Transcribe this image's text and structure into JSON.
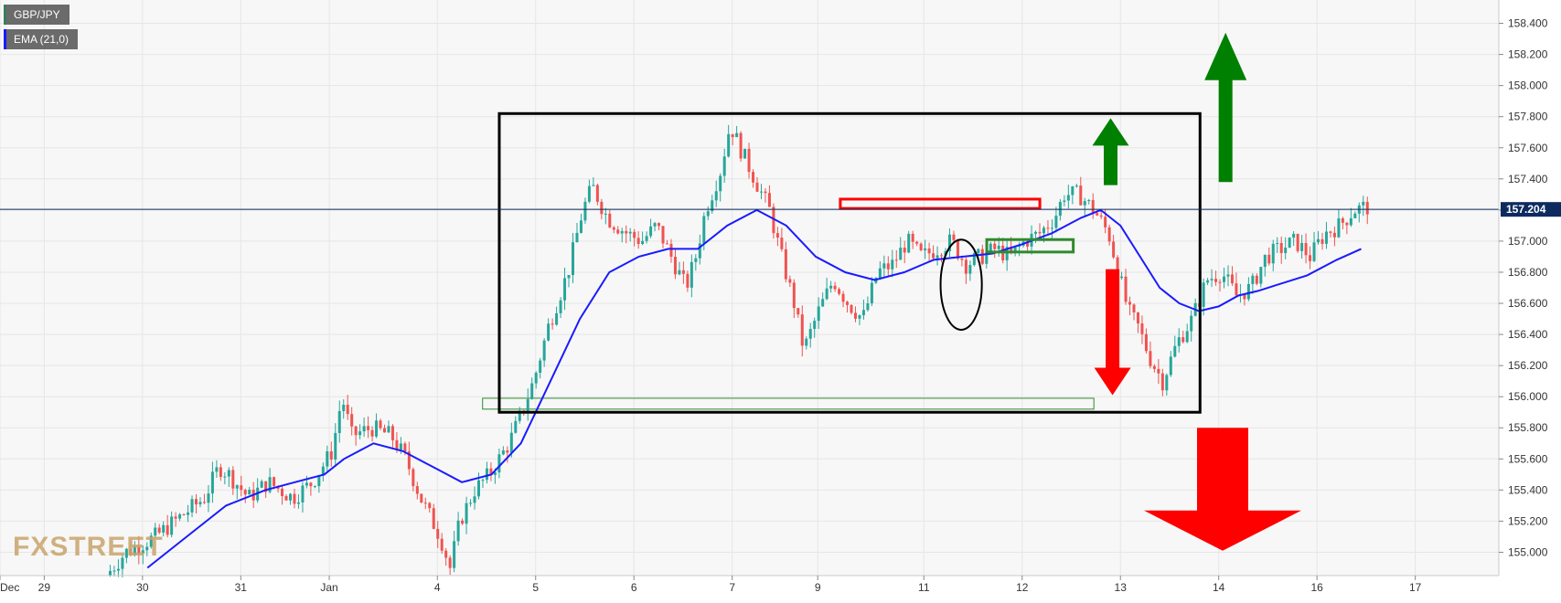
{
  "legend": [
    {
      "label": "GBP/JPY",
      "bg": "#6b6b6b",
      "accent": "#3a7d5a"
    },
    {
      "label": "EMA (21,0)",
      "bg": "#6b6b6b",
      "accent": "#1a1aff"
    }
  ],
  "watermark": "FXSTREET",
  "current_price_label": "157.204",
  "chart_data": {
    "type": "candlestick",
    "symbol": "GBP/JPY",
    "indicator": "EMA (21,0)",
    "y_ticks": [
      "158.400",
      "158.200",
      "158.000",
      "157.800",
      "157.600",
      "157.400",
      "157.200",
      "157.000",
      "156.800",
      "156.600",
      "156.400",
      "156.200",
      "156.000",
      "155.800",
      "155.600",
      "155.400",
      "155.200",
      "155.000"
    ],
    "ylim": [
      154.85,
      158.55
    ],
    "x_ticks": [
      {
        "label": "Dec",
        "day": 28.0
      },
      {
        "label": "29",
        "day": 28.45
      },
      {
        "label": "30",
        "day": 29.45
      },
      {
        "label": "31",
        "day": 30.45
      },
      {
        "label": "Jan",
        "day": 31.35
      },
      {
        "label": "4",
        "day": 32.45
      },
      {
        "label": "5",
        "day": 33.45
      },
      {
        "label": "6",
        "day": 34.45
      },
      {
        "label": "7",
        "day": 35.45
      },
      {
        "label": "9",
        "day": 36.32
      },
      {
        "label": "11",
        "day": 37.4
      },
      {
        "label": "12",
        "day": 38.4
      },
      {
        "label": "13",
        "day": 39.4
      },
      {
        "label": "14",
        "day": 40.4
      },
      {
        "label": "16",
        "day": 41.4
      },
      {
        "label": "17",
        "day": 42.4
      }
    ],
    "xlim": [
      28.0,
      43.25
    ],
    "current_price": 157.204,
    "price_path": [
      [
        29.1,
        154.85
      ],
      [
        29.3,
        155.0
      ],
      [
        29.6,
        155.1
      ],
      [
        29.9,
        155.25
      ],
      [
        30.1,
        155.35
      ],
      [
        30.25,
        155.55
      ],
      [
        30.35,
        155.5
      ],
      [
        30.55,
        155.35
      ],
      [
        30.75,
        155.45
      ],
      [
        31.0,
        155.35
      ],
      [
        31.2,
        155.45
      ],
      [
        31.4,
        155.65
      ],
      [
        31.5,
        156.0
      ],
      [
        31.6,
        155.75
      ],
      [
        31.8,
        155.8
      ],
      [
        32.0,
        155.75
      ],
      [
        32.15,
        155.6
      ],
      [
        32.3,
        155.35
      ],
      [
        32.5,
        155.1
      ],
      [
        32.6,
        154.9
      ],
      [
        32.7,
        155.2
      ],
      [
        32.85,
        155.4
      ],
      [
        33.0,
        155.5
      ],
      [
        33.1,
        155.6
      ],
      [
        33.2,
        155.7
      ],
      [
        33.3,
        155.85
      ],
      [
        33.45,
        156.1
      ],
      [
        33.6,
        156.45
      ],
      [
        33.8,
        156.8
      ],
      [
        33.95,
        157.2
      ],
      [
        34.05,
        157.35
      ],
      [
        34.2,
        157.15
      ],
      [
        34.4,
        157.05
      ],
      [
        34.55,
        157.0
      ],
      [
        34.7,
        157.1
      ],
      [
        34.85,
        156.9
      ],
      [
        35.0,
        156.7
      ],
      [
        35.1,
        156.9
      ],
      [
        35.2,
        157.2
      ],
      [
        35.35,
        157.45
      ],
      [
        35.45,
        157.75
      ],
      [
        35.55,
        157.6
      ],
      [
        35.7,
        157.4
      ],
      [
        35.85,
        157.2
      ],
      [
        35.95,
        156.95
      ],
      [
        36.1,
        156.6
      ],
      [
        36.2,
        156.3
      ],
      [
        36.35,
        156.55
      ],
      [
        36.5,
        156.75
      ],
      [
        36.65,
        156.6
      ],
      [
        36.8,
        156.5
      ],
      [
        36.95,
        156.8
      ],
      [
        37.1,
        156.85
      ],
      [
        37.25,
        157.0
      ],
      [
        37.4,
        156.9
      ],
      [
        37.55,
        156.95
      ],
      [
        37.7,
        157.0
      ],
      [
        37.85,
        156.85
      ],
      [
        38.0,
        156.9
      ],
      [
        38.15,
        156.95
      ],
      [
        38.3,
        156.9
      ],
      [
        38.45,
        157.0
      ],
      [
        38.6,
        157.05
      ],
      [
        38.75,
        157.15
      ],
      [
        38.85,
        157.3
      ],
      [
        39.0,
        157.3
      ],
      [
        39.15,
        157.2
      ],
      [
        39.3,
        157.05
      ],
      [
        39.42,
        156.75
      ],
      [
        39.5,
        156.55
      ],
      [
        39.6,
        156.45
      ],
      [
        39.72,
        156.25
      ],
      [
        39.85,
        156.1
      ],
      [
        40.0,
        156.35
      ],
      [
        40.15,
        156.5
      ],
      [
        40.3,
        156.75
      ],
      [
        40.45,
        156.8
      ],
      [
        40.6,
        156.65
      ],
      [
        40.75,
        156.7
      ],
      [
        40.9,
        156.9
      ],
      [
        41.05,
        156.95
      ],
      [
        41.2,
        157.0
      ],
      [
        41.35,
        156.9
      ],
      [
        41.5,
        157.05
      ],
      [
        41.65,
        157.1
      ],
      [
        41.8,
        157.2
      ],
      [
        41.92,
        157.22
      ]
    ],
    "ema_path": [
      [
        29.5,
        154.9
      ],
      [
        29.9,
        155.1
      ],
      [
        30.3,
        155.3
      ],
      [
        30.7,
        155.4
      ],
      [
        31.0,
        155.45
      ],
      [
        31.3,
        155.5
      ],
      [
        31.5,
        155.6
      ],
      [
        31.8,
        155.7
      ],
      [
        32.1,
        155.65
      ],
      [
        32.4,
        155.55
      ],
      [
        32.7,
        155.45
      ],
      [
        33.0,
        155.5
      ],
      [
        33.3,
        155.7
      ],
      [
        33.6,
        156.1
      ],
      [
        33.9,
        156.5
      ],
      [
        34.2,
        156.8
      ],
      [
        34.5,
        156.9
      ],
      [
        34.8,
        156.95
      ],
      [
        35.1,
        156.95
      ],
      [
        35.4,
        157.1
      ],
      [
        35.7,
        157.2
      ],
      [
        36.0,
        157.1
      ],
      [
        36.3,
        156.9
      ],
      [
        36.6,
        156.8
      ],
      [
        36.9,
        156.75
      ],
      [
        37.2,
        156.8
      ],
      [
        37.5,
        156.88
      ],
      [
        37.8,
        156.9
      ],
      [
        38.1,
        156.92
      ],
      [
        38.4,
        156.98
      ],
      [
        38.7,
        157.05
      ],
      [
        39.0,
        157.15
      ],
      [
        39.2,
        157.2
      ],
      [
        39.4,
        157.1
      ],
      [
        39.6,
        156.9
      ],
      [
        39.8,
        156.7
      ],
      [
        40.0,
        156.6
      ],
      [
        40.2,
        156.55
      ],
      [
        40.4,
        156.58
      ],
      [
        40.6,
        156.65
      ],
      [
        40.8,
        156.68
      ],
      [
        41.0,
        156.72
      ],
      [
        41.3,
        156.78
      ],
      [
        41.6,
        156.88
      ],
      [
        41.85,
        156.95
      ]
    ],
    "annotations": {
      "range_box": {
        "x0": 33.08,
        "x1": 40.21,
        "y_top": 157.82,
        "y_bottom": 155.9,
        "color": "#000000"
      },
      "support_zone": {
        "x0": 32.91,
        "x1": 39.13,
        "y_top": 155.99,
        "y_bottom": 155.92,
        "color": "#2e8b2e"
      },
      "resistance_zone": {
        "x0": 36.55,
        "x1": 38.58,
        "y_top": 157.27,
        "y_bottom": 157.21,
        "color": "#ff0000"
      },
      "small_support_zone": {
        "x0": 38.04,
        "x1": 38.92,
        "y_top": 157.01,
        "y_bottom": 156.93,
        "color": "#2e8b2e"
      },
      "ellipse": {
        "cx": 37.78,
        "cy": 156.72,
        "rx_days": 0.21,
        "ry_price": 0.29,
        "color": "#000000"
      },
      "arrows": [
        {
          "direction": "up",
          "x": 39.3,
          "y_tip": 157.79,
          "y_tail": 157.36,
          "color": "#008000",
          "size": "small"
        },
        {
          "direction": "up",
          "x": 40.47,
          "y_tip": 158.34,
          "y_tail": 157.38,
          "color": "#008000",
          "size": "medium"
        },
        {
          "direction": "down",
          "x": 39.32,
          "y_tail": 156.82,
          "y_tip": 156.01,
          "color": "#ff0000",
          "size": "small"
        },
        {
          "direction": "down",
          "x": 40.44,
          "y_tail": 155.8,
          "y_tip": 155.01,
          "color": "#ff0000",
          "size": "large"
        }
      ]
    },
    "colors": {
      "up": "#26a69a",
      "down": "#ef5350",
      "ema": "#1a1aff",
      "price_line": "#0d2b5e",
      "grid": "#e6e6e6"
    }
  }
}
